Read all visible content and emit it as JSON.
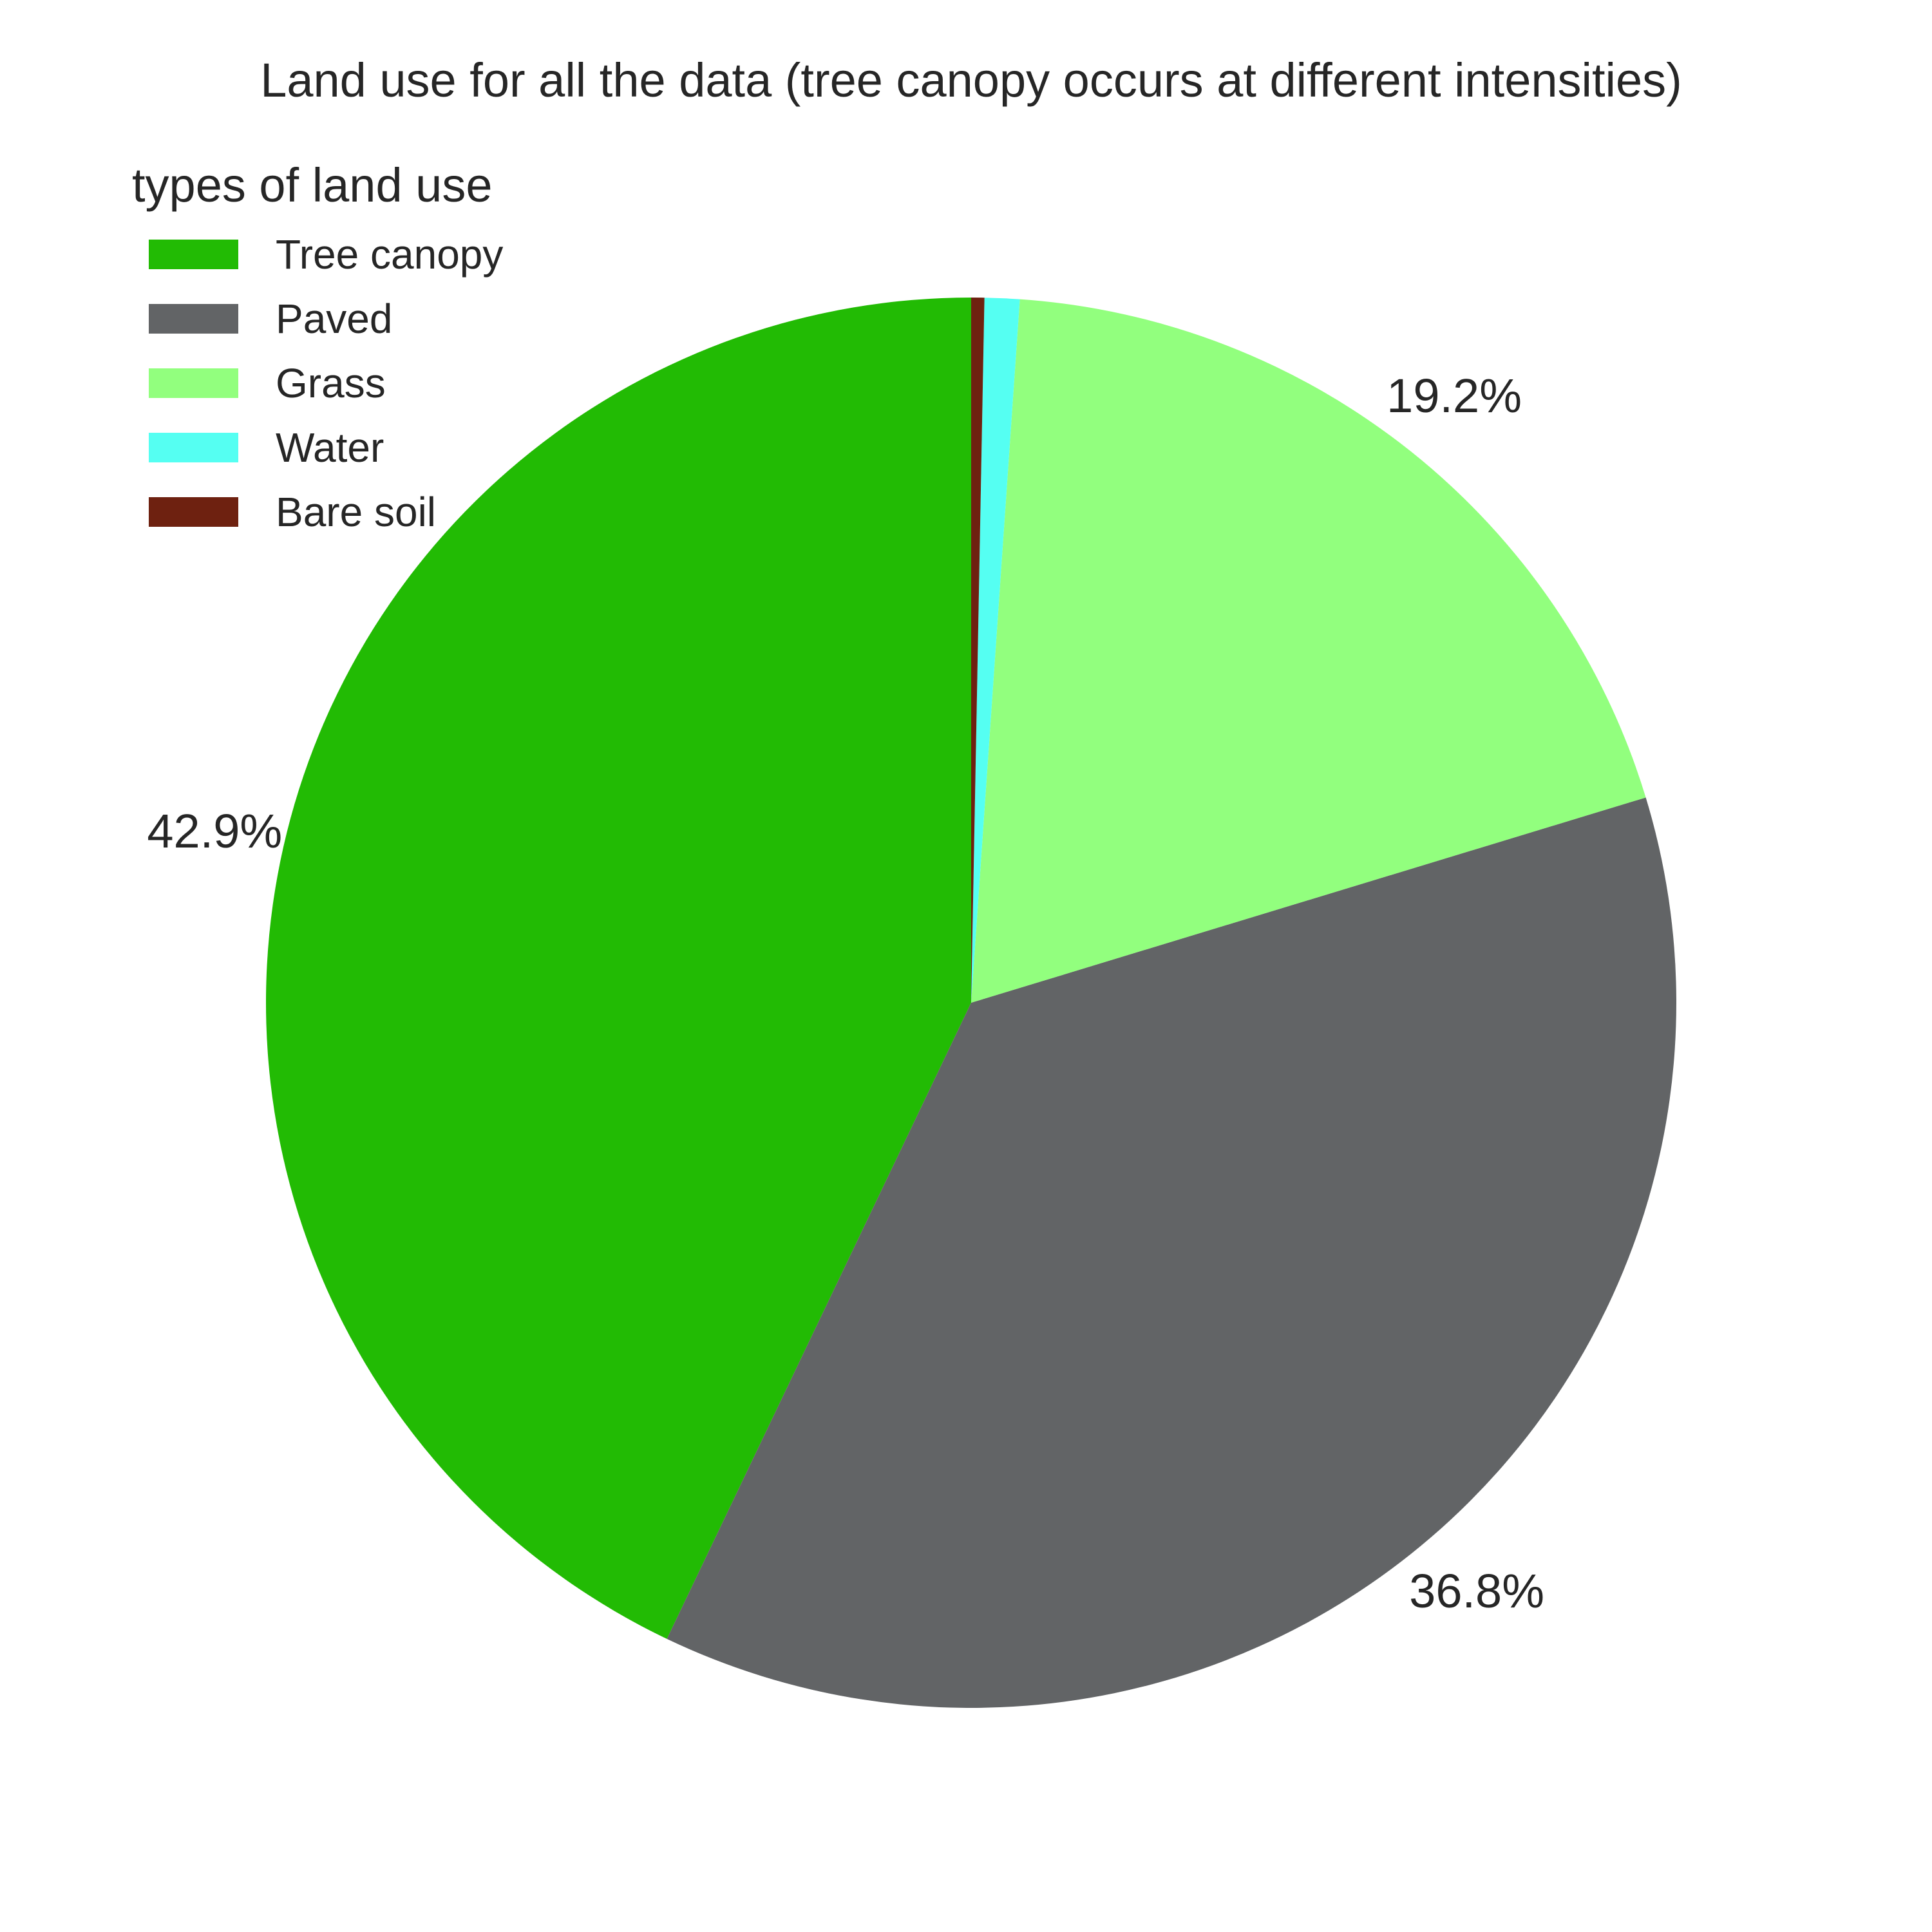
{
  "chart_data": {
    "type": "pie",
    "title": "Land use for all the data (tree canopy occurs at different intensities)",
    "legend": {
      "title": "types of land use",
      "placement": "top-left"
    },
    "start_angle_deg": 90,
    "direction": "counterclockwise",
    "slices": [
      {
        "name": "Tree canopy",
        "value": 42.9,
        "color": "#22bb04",
        "label": "42.9%"
      },
      {
        "name": "Paved",
        "value": 36.8,
        "color": "#626466",
        "label": "36.8%"
      },
      {
        "name": "Grass",
        "value": 19.2,
        "color": "#92ff7e",
        "label": "19.2%"
      },
      {
        "name": "Water",
        "value": 0.8,
        "color": "#55fff2",
        "label": ""
      },
      {
        "name": "Bare soil",
        "value": 0.3,
        "color": "#6e2110",
        "label": ""
      }
    ]
  }
}
